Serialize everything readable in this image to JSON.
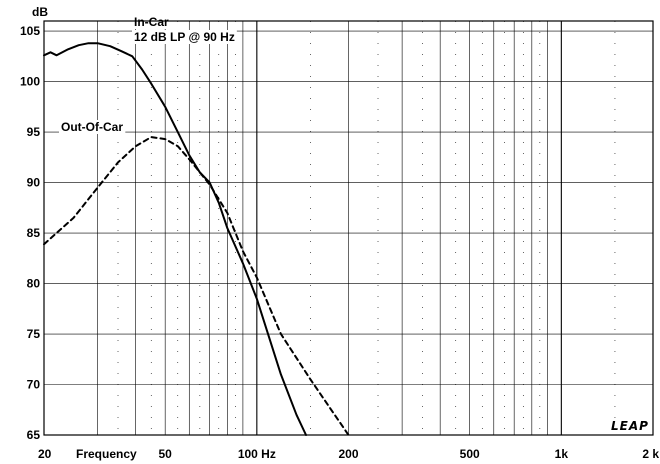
{
  "chart_data": {
    "type": "line",
    "title": "",
    "ylabel": "dB",
    "xlabel": "Frequency",
    "x_scale": "log",
    "xlim": [
      20,
      2000
    ],
    "ylim": [
      65,
      106
    ],
    "grid": true,
    "x_tick_labels": [
      {
        "value": 20,
        "label": "20"
      },
      {
        "value": 50,
        "label": "50"
      },
      {
        "value": 100,
        "label": "100 Hz"
      },
      {
        "value": 200,
        "label": "200"
      },
      {
        "value": 500,
        "label": "500"
      },
      {
        "value": 1000,
        "label": "1k"
      },
      {
        "value": 2000,
        "label": "2 k"
      }
    ],
    "y_ticks": [
      65,
      70,
      75,
      80,
      85,
      90,
      95,
      100,
      105
    ],
    "series": [
      {
        "name": "In-Car",
        "note": "12 dB LP @ 90 Hz",
        "style": "solid",
        "points": [
          [
            20,
            102.6
          ],
          [
            21,
            102.9
          ],
          [
            22,
            102.6
          ],
          [
            24,
            103.2
          ],
          [
            26,
            103.6
          ],
          [
            28,
            103.8
          ],
          [
            30,
            103.8
          ],
          [
            33,
            103.5
          ],
          [
            36,
            103.0
          ],
          [
            39,
            102.5
          ],
          [
            42,
            101.2
          ],
          [
            45,
            99.8
          ],
          [
            50,
            97.5
          ],
          [
            55,
            95.0
          ],
          [
            60,
            92.7
          ],
          [
            65,
            91.0
          ],
          [
            70,
            90.0
          ],
          [
            75,
            88.0
          ],
          [
            80,
            85.5
          ],
          [
            90,
            82.0
          ],
          [
            100,
            78.5
          ],
          [
            120,
            71.0
          ],
          [
            135,
            67.0
          ],
          [
            145,
            65.0
          ]
        ]
      },
      {
        "name": "Out-Of-Car",
        "style": "dashed",
        "points": [
          [
            20,
            83.9
          ],
          [
            25,
            86.5
          ],
          [
            30,
            89.5
          ],
          [
            35,
            92.0
          ],
          [
            40,
            93.6
          ],
          [
            45,
            94.5
          ],
          [
            50,
            94.3
          ],
          [
            55,
            93.6
          ],
          [
            60,
            92.3
          ],
          [
            70,
            89.8
          ],
          [
            80,
            87.0
          ],
          [
            90,
            83.2
          ],
          [
            100,
            80.6
          ],
          [
            120,
            75.0
          ],
          [
            150,
            70.5
          ],
          [
            200,
            65.0
          ]
        ]
      }
    ],
    "watermark": "LEAP"
  }
}
